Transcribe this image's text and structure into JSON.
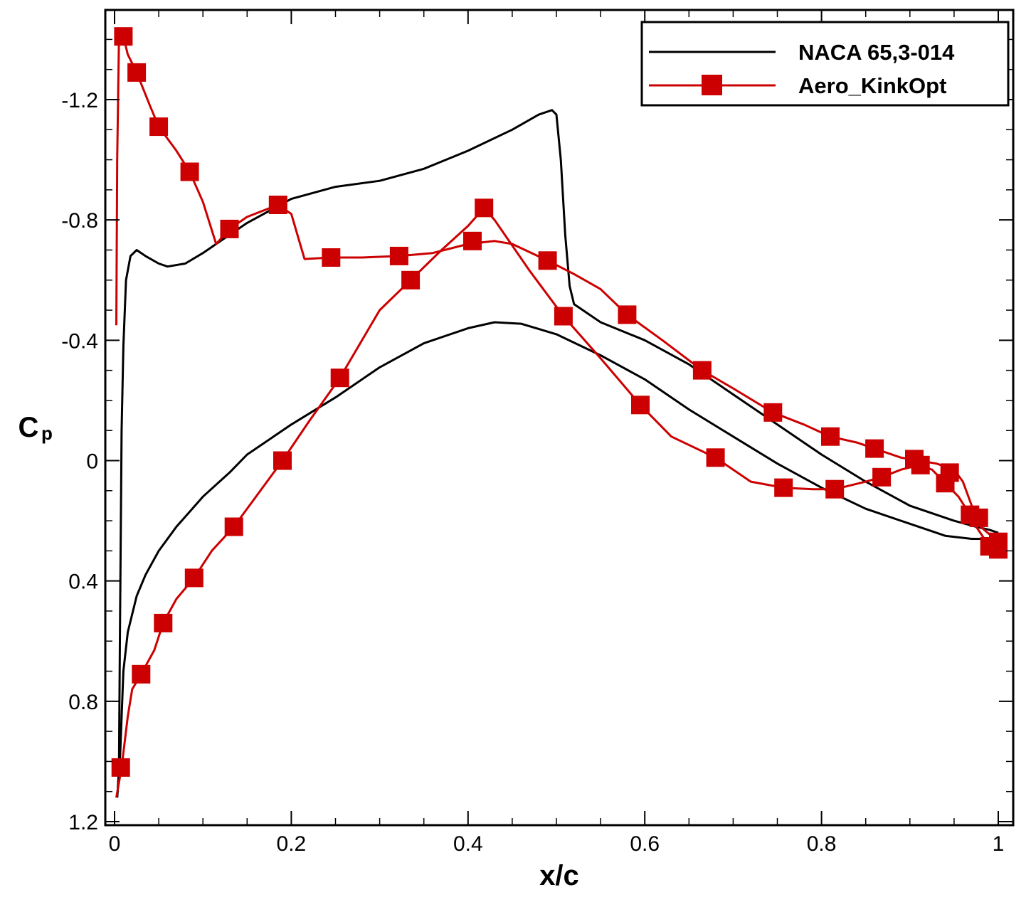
{
  "chart_data": {
    "type": "line",
    "title": "",
    "xlabel": "x/c",
    "ylabel": "C",
    "ylabel_subscript": "p",
    "xlim": [
      0,
      1
    ],
    "ylim": [
      1.2,
      -1.45
    ],
    "y_inverted": true,
    "grid": false,
    "legend_position": "top-right",
    "x_ticks": [
      {
        "value": 0,
        "label": "0"
      },
      {
        "value": 0.2,
        "label": "0.2"
      },
      {
        "value": 0.4,
        "label": "0.4"
      },
      {
        "value": 0.6,
        "label": "0.6"
      },
      {
        "value": 0.8,
        "label": "0.8"
      },
      {
        "value": 1,
        "label": "1"
      }
    ],
    "y_ticks": [
      {
        "value": -1.2,
        "label": "-1.2"
      },
      {
        "value": -0.8,
        "label": "-0.8"
      },
      {
        "value": -0.4,
        "label": "-0.4"
      },
      {
        "value": 0,
        "label": "0"
      },
      {
        "value": 0.4,
        "label": "0.4"
      },
      {
        "value": 0.8,
        "label": "0.8"
      },
      {
        "value": 1.2,
        "label": "1.2"
      }
    ],
    "series": [
      {
        "name": "NACA 65,3-014",
        "color": "#000000",
        "markers": false,
        "upper": [
          [
            0.003,
            1.12
          ],
          [
            0.005,
            1.03
          ],
          [
            0.006,
            0.6
          ],
          [
            0.008,
            -0.1
          ],
          [
            0.01,
            -0.38
          ],
          [
            0.013,
            -0.6
          ],
          [
            0.018,
            -0.68
          ],
          [
            0.025,
            -0.7
          ],
          [
            0.035,
            -0.68
          ],
          [
            0.05,
            -0.655
          ],
          [
            0.06,
            -0.645
          ],
          [
            0.08,
            -0.655
          ],
          [
            0.1,
            -0.69
          ],
          [
            0.12,
            -0.73
          ],
          [
            0.15,
            -0.79
          ],
          [
            0.2,
            -0.87
          ],
          [
            0.25,
            -0.91
          ],
          [
            0.3,
            -0.93
          ],
          [
            0.35,
            -0.97
          ],
          [
            0.4,
            -1.03
          ],
          [
            0.45,
            -1.1
          ],
          [
            0.48,
            -1.15
          ],
          [
            0.495,
            -1.165
          ],
          [
            0.5,
            -1.15
          ],
          [
            0.505,
            -1.0
          ],
          [
            0.51,
            -0.75
          ],
          [
            0.515,
            -0.58
          ],
          [
            0.52,
            -0.52
          ],
          [
            0.55,
            -0.46
          ],
          [
            0.6,
            -0.4
          ],
          [
            0.65,
            -0.32
          ],
          [
            0.7,
            -0.22
          ],
          [
            0.75,
            -0.12
          ],
          [
            0.8,
            -0.02
          ],
          [
            0.85,
            0.07
          ],
          [
            0.9,
            0.15
          ],
          [
            0.95,
            0.2
          ],
          [
            0.975,
            0.22
          ],
          [
            0.99,
            0.23
          ],
          [
            1.0,
            0.24
          ]
        ],
        "lower": [
          [
            0.003,
            1.12
          ],
          [
            0.006,
            1.0
          ],
          [
            0.01,
            0.7
          ],
          [
            0.015,
            0.57
          ],
          [
            0.025,
            0.45
          ],
          [
            0.035,
            0.38
          ],
          [
            0.05,
            0.3
          ],
          [
            0.07,
            0.22
          ],
          [
            0.1,
            0.12
          ],
          [
            0.13,
            0.04
          ],
          [
            0.15,
            -0.02
          ],
          [
            0.2,
            -0.12
          ],
          [
            0.25,
            -0.21
          ],
          [
            0.3,
            -0.31
          ],
          [
            0.35,
            -0.39
          ],
          [
            0.4,
            -0.44
          ],
          [
            0.43,
            -0.46
          ],
          [
            0.46,
            -0.455
          ],
          [
            0.5,
            -0.42
          ],
          [
            0.55,
            -0.35
          ],
          [
            0.6,
            -0.27
          ],
          [
            0.65,
            -0.17
          ],
          [
            0.7,
            -0.08
          ],
          [
            0.75,
            0.01
          ],
          [
            0.8,
            0.09
          ],
          [
            0.85,
            0.16
          ],
          [
            0.9,
            0.21
          ],
          [
            0.94,
            0.25
          ],
          [
            0.97,
            0.26
          ],
          [
            0.99,
            0.26
          ],
          [
            1.0,
            0.25
          ]
        ]
      },
      {
        "name": "Aero_KinkOpt",
        "color": "#cc0000",
        "markers": true,
        "marker_shape": "square",
        "upper": [
          [
            0.002,
            -0.45
          ],
          [
            0.003,
            -1.0
          ],
          [
            0.005,
            -1.4
          ],
          [
            0.01,
            -1.41
          ],
          [
            0.015,
            -1.35
          ],
          [
            0.025,
            -1.29
          ],
          [
            0.04,
            -1.18
          ],
          [
            0.05,
            -1.11
          ],
          [
            0.07,
            -1.03
          ],
          [
            0.085,
            -0.96
          ],
          [
            0.1,
            -0.86
          ],
          [
            0.115,
            -0.72
          ],
          [
            0.13,
            -0.77
          ],
          [
            0.15,
            -0.81
          ],
          [
            0.185,
            -0.85
          ],
          [
            0.2,
            -0.82
          ],
          [
            0.215,
            -0.67
          ],
          [
            0.245,
            -0.675
          ],
          [
            0.28,
            -0.675
          ],
          [
            0.322,
            -0.68
          ],
          [
            0.36,
            -0.69
          ],
          [
            0.4,
            -0.72
          ],
          [
            0.43,
            -0.73
          ],
          [
            0.45,
            -0.72
          ],
          [
            0.49,
            -0.665
          ],
          [
            0.52,
            -0.62
          ],
          [
            0.55,
            -0.57
          ],
          [
            0.58,
            -0.485
          ],
          [
            0.62,
            -0.4
          ],
          [
            0.665,
            -0.3
          ],
          [
            0.7,
            -0.24
          ],
          [
            0.745,
            -0.16
          ],
          [
            0.78,
            -0.12
          ],
          [
            0.81,
            -0.08
          ],
          [
            0.84,
            -0.06
          ],
          [
            0.86,
            -0.04
          ],
          [
            0.89,
            -0.01
          ],
          [
            0.91,
            0.0
          ],
          [
            0.93,
            0.01
          ],
          [
            0.95,
            0.03
          ],
          [
            0.96,
            0.07
          ],
          [
            0.97,
            0.15
          ],
          [
            0.98,
            0.22
          ],
          [
            1.0,
            0.27
          ]
        ],
        "lower": [
          [
            0.002,
            1.12
          ],
          [
            0.008,
            1.02
          ],
          [
            0.015,
            0.85
          ],
          [
            0.02,
            0.76
          ],
          [
            0.03,
            0.71
          ],
          [
            0.045,
            0.63
          ],
          [
            0.055,
            0.54
          ],
          [
            0.07,
            0.46
          ],
          [
            0.09,
            0.39
          ],
          [
            0.11,
            0.3
          ],
          [
            0.135,
            0.22
          ],
          [
            0.16,
            0.12
          ],
          [
            0.19,
            0.0
          ],
          [
            0.22,
            -0.13
          ],
          [
            0.255,
            -0.275
          ],
          [
            0.3,
            -0.5
          ],
          [
            0.335,
            -0.6
          ],
          [
            0.37,
            -0.7
          ],
          [
            0.4,
            -0.78
          ],
          [
            0.418,
            -0.84
          ],
          [
            0.43,
            -0.8
          ],
          [
            0.47,
            -0.63
          ],
          [
            0.508,
            -0.48
          ],
          [
            0.55,
            -0.34
          ],
          [
            0.595,
            -0.185
          ],
          [
            0.63,
            -0.08
          ],
          [
            0.68,
            -0.01
          ],
          [
            0.72,
            0.07
          ],
          [
            0.757,
            0.09
          ],
          [
            0.79,
            0.095
          ],
          [
            0.815,
            0.095
          ],
          [
            0.85,
            0.07
          ],
          [
            0.868,
            0.055
          ],
          [
            0.89,
            0.03
          ],
          [
            0.91,
            0.015
          ],
          [
            0.925,
            0.03
          ],
          [
            0.94,
            0.075
          ],
          [
            0.955,
            0.12
          ],
          [
            0.968,
            0.18
          ],
          [
            0.975,
            0.22
          ],
          [
            0.99,
            0.285
          ],
          [
            1.0,
            0.295
          ]
        ],
        "marker_points": [
          [
            0.007,
            1.02
          ],
          [
            0.03,
            0.71
          ],
          [
            0.055,
            0.54
          ],
          [
            0.09,
            0.39
          ],
          [
            0.135,
            0.22
          ],
          [
            0.19,
            0.0
          ],
          [
            0.255,
            -0.275
          ],
          [
            0.335,
            -0.6
          ],
          [
            0.418,
            -0.84
          ],
          [
            0.508,
            -0.48
          ],
          [
            0.595,
            -0.185
          ],
          [
            0.68,
            -0.01
          ],
          [
            0.757,
            0.09
          ],
          [
            0.815,
            0.095
          ],
          [
            0.868,
            0.055
          ],
          [
            0.94,
            0.075
          ],
          [
            0.968,
            0.18
          ],
          [
            0.99,
            0.285
          ],
          [
            1.0,
            0.295
          ],
          [
            0.01,
            -1.41
          ],
          [
            0.025,
            -1.29
          ],
          [
            0.05,
            -1.11
          ],
          [
            0.085,
            -0.96
          ],
          [
            0.13,
            -0.77
          ],
          [
            0.185,
            -0.85
          ],
          [
            0.245,
            -0.675
          ],
          [
            0.322,
            -0.68
          ],
          [
            0.405,
            -0.73
          ],
          [
            0.49,
            -0.665
          ],
          [
            0.58,
            -0.485
          ],
          [
            0.665,
            -0.3
          ],
          [
            0.745,
            -0.16
          ],
          [
            0.81,
            -0.08
          ],
          [
            0.86,
            -0.04
          ],
          [
            0.905,
            -0.005
          ],
          [
            0.912,
            0.015
          ],
          [
            0.945,
            0.04
          ],
          [
            0.978,
            0.19
          ],
          [
            1.0,
            0.27
          ]
        ]
      }
    ]
  }
}
